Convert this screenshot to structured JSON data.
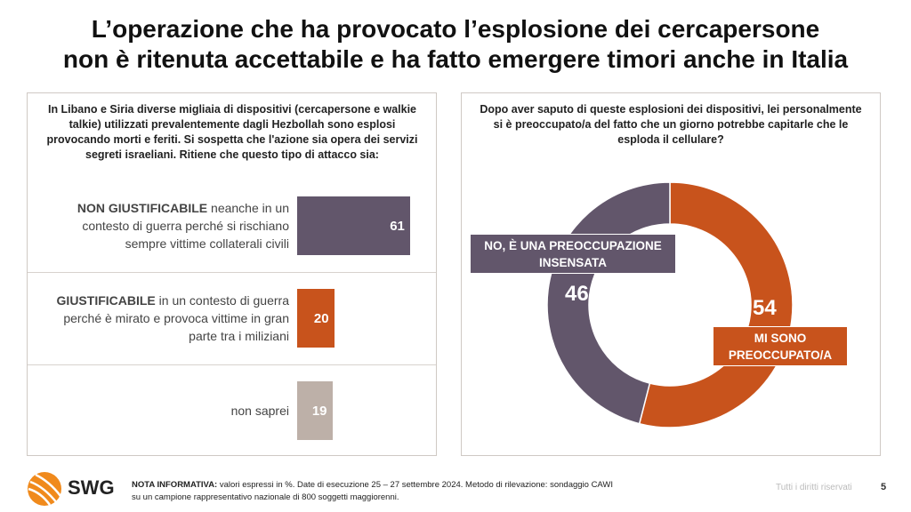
{
  "title_line1": "L’operazione che ha provocato l’esplosione dei cercapersone",
  "title_line2": "non è ritenuta accettabile e ha fatto emergere timori anche in Italia",
  "chart_data": [
    {
      "type": "bar",
      "orientation": "horizontal",
      "question": "In Libano e Siria diverse migliaia di dispositivi (cercapersone e walkie talkie) utilizzati prevalentemente dagli Hezbollah sono esplosi provocando morti e feriti. Si sospetta che l'azione sia opera dei servizi segreti israeliani. Ritiene che questo tipo di attacco sia:",
      "categories": [
        {
          "bold": "NON GIUSTIFICABILE",
          "rest": " neanche in un contesto di guerra perché si rischiano sempre vittime collaterali civili"
        },
        {
          "bold": "GIUSTIFICABILE",
          "rest": " in un contesto di guerra perché è mirato e provoca vittime in gran parte tra i miliziani"
        },
        {
          "bold": "",
          "rest": "non saprei"
        }
      ],
      "values": [
        61,
        20,
        19
      ],
      "colors": [
        "#62566B",
        "#C8531C",
        "#BDB0A8"
      ],
      "unit": "%"
    },
    {
      "type": "pie",
      "variant": "donut",
      "question": "Dopo aver saputo di queste esplosioni dei dispositivi, lei personalmente si è preoccupato/a del fatto che un giorno potrebbe capitarle che le esploda il cellulare?",
      "slices": [
        {
          "label": "MI SONO PREOCCUPATO/A",
          "value": 54,
          "color": "#C8531C"
        },
        {
          "label": "NO, È UNA PREOCCUPAZIONE INSENSATA",
          "value": 46,
          "color": "#62566B"
        }
      ],
      "unit": "%"
    }
  ],
  "footer": {
    "note_bold": "NOTA INFORMATIVA:",
    "note": " valori espressi in %. Date di esecuzione 25 – 27 settembre 2024. Metodo di rilevazione: sondaggio CAWI",
    "note2": "su un campione rappresentativo nazionale di 800 soggetti maggiorenni.",
    "rights": "Tutti i diritti riservati",
    "page": "5",
    "logo": "SWG"
  }
}
